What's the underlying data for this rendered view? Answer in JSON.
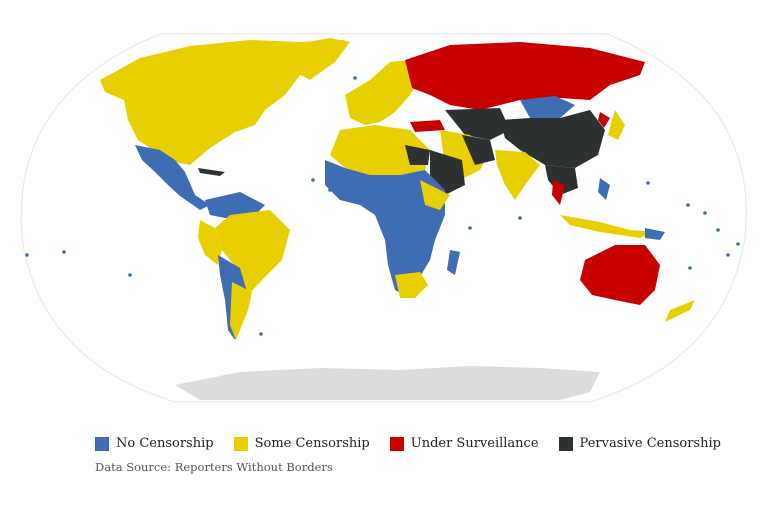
{
  "legend": [
    {
      "label": "No Censorship",
      "color": "#3f6db3"
    },
    {
      "label": "Some Censorship",
      "color": "#e8d000"
    },
    {
      "label": "Under Surveillance",
      "color": "#c80000"
    },
    {
      "label": "Pervasive Censorship",
      "color": "#2e3131"
    }
  ],
  "source": "Data Source: Reporters Without Borders",
  "colors": {
    "background": "#ffffff",
    "map_outline": "#e6e6e6",
    "antarctica": "#dcdcdc"
  }
}
